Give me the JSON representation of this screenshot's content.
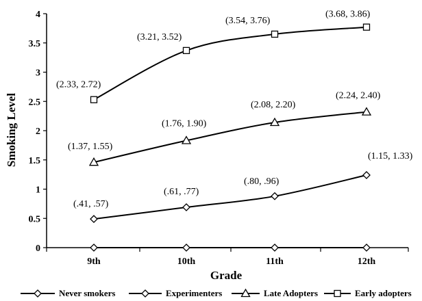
{
  "chart_data": {
    "type": "line",
    "xlabel": "Grade",
    "ylabel": "Smoking Level",
    "categories": [
      "9th",
      "10th",
      "11th",
      "12th"
    ],
    "ylim": [
      0,
      4
    ],
    "yticks": [
      "0",
      "0.5",
      "1",
      "1.5",
      "2",
      "2.5",
      "3",
      "3.5",
      "4"
    ],
    "grid": false,
    "legend_position": "bottom",
    "series": [
      {
        "name": "Never smokers",
        "marker": "diamond",
        "values": [
          0,
          0,
          0,
          0
        ],
        "labels": [
          "",
          "",
          "",
          ""
        ]
      },
      {
        "name": "Experimenters",
        "marker": "diamond",
        "values": [
          0.49,
          0.69,
          0.88,
          1.24
        ],
        "labels": [
          "(.41, .57)",
          "(.61, .77)",
          "(.80, .96)",
          "(1.15, 1.33)"
        ]
      },
      {
        "name": "Late Adopters",
        "marker": "triangle",
        "values": [
          1.46,
          1.83,
          2.14,
          2.32
        ],
        "labels": [
          "(1.37, 1.55)",
          "(1.76, 1.90)",
          "(2.08, 2.20)",
          "(2.24, 2.40)"
        ]
      },
      {
        "name": "Early adopters",
        "marker": "square",
        "values": [
          2.53,
          3.37,
          3.65,
          3.77
        ],
        "labels": [
          "(2.33, 2.72)",
          "(3.21, 3.52)",
          "(3.54, 3.76)",
          "(3.68, 3.86)"
        ]
      }
    ]
  }
}
